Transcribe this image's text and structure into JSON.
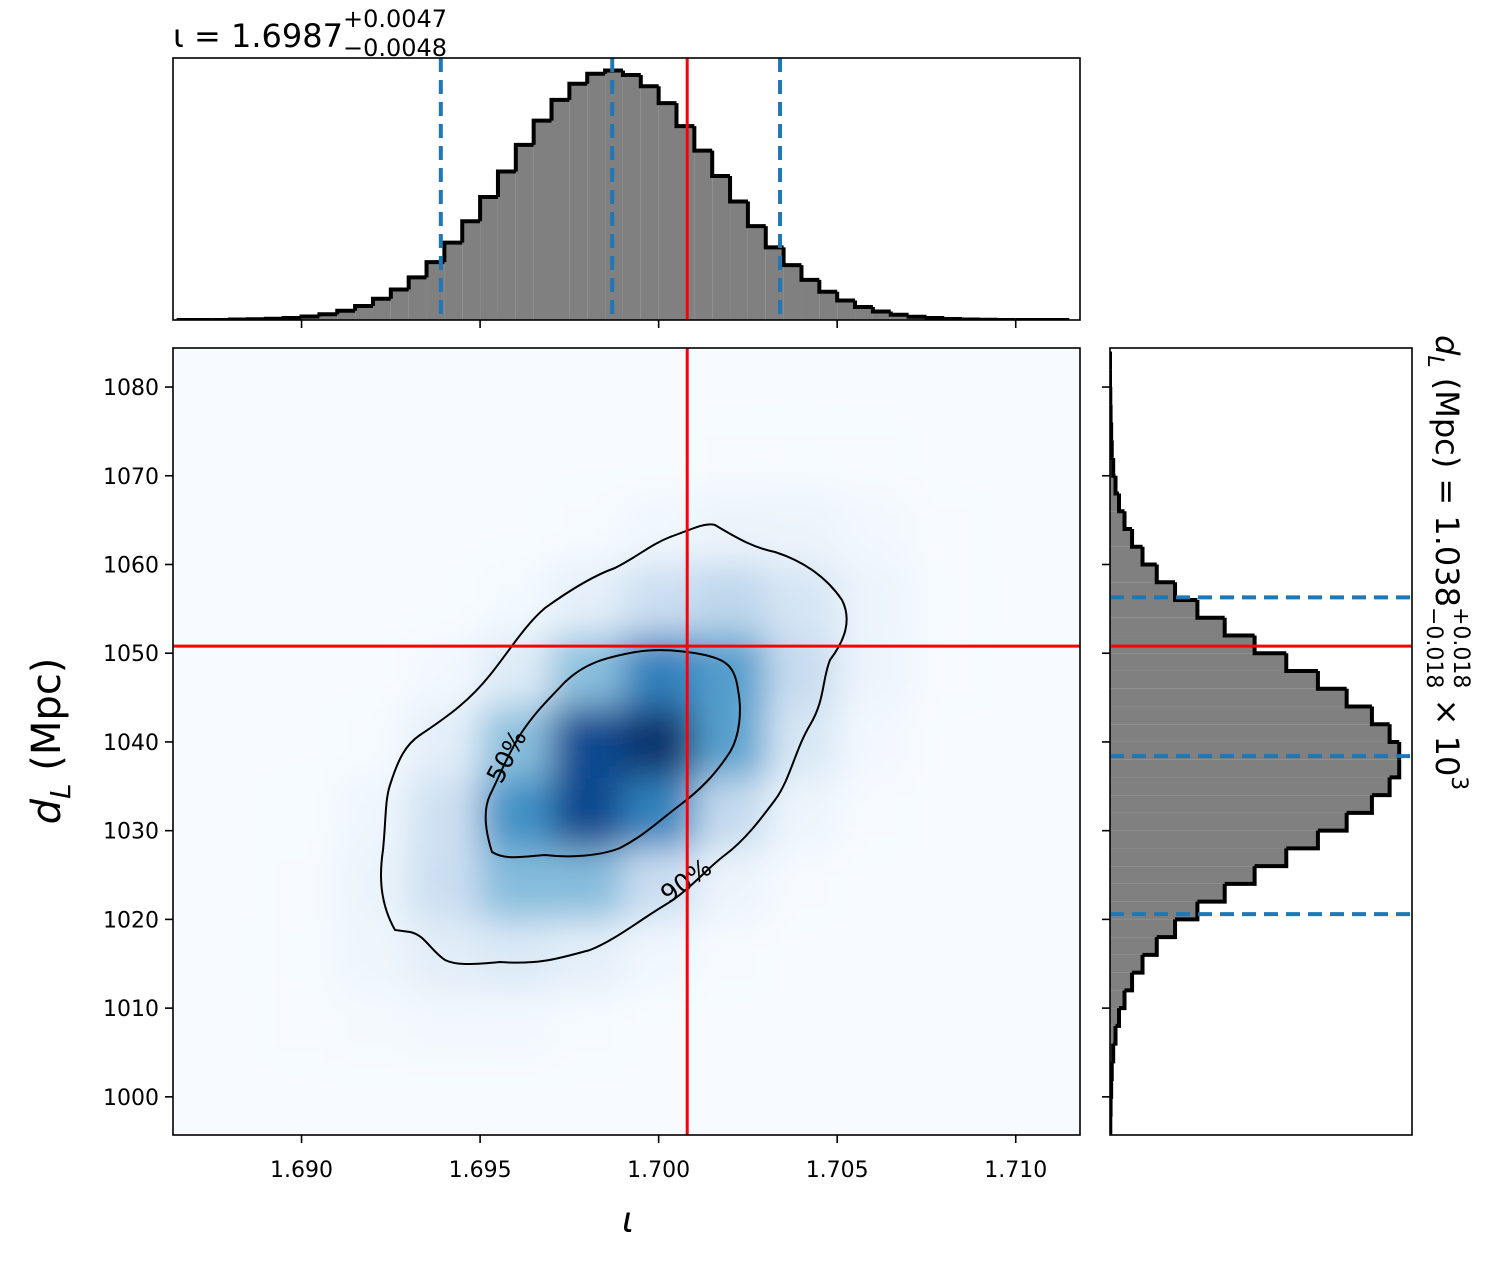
{
  "chart_data": [
    {
      "type": "histogram",
      "orientation": "vertical",
      "title": {
        "main": "ι = 1.6987",
        "upper": "+0.0047",
        "lower": "−0.0048"
      },
      "bins": [
        1.6865,
        1.687,
        1.6875,
        1.688,
        1.6885,
        1.689,
        1.6895,
        1.69,
        1.6905,
        1.691,
        1.6915,
        1.692,
        1.6925,
        1.693,
        1.6935,
        1.694,
        1.6945,
        1.695,
        1.6955,
        1.696,
        1.6965,
        1.697,
        1.6975,
        1.698,
        1.6985,
        1.699,
        1.6995,
        1.7,
        1.7005,
        1.701,
        1.7015,
        1.702,
        1.7025,
        1.703,
        1.7035,
        1.704,
        1.7045,
        1.705,
        1.7055,
        1.706,
        1.7065,
        1.707,
        1.7075,
        1.708,
        1.7085,
        1.709,
        1.7095,
        1.71,
        1.7105,
        1.711,
        1.7115
      ],
      "counts": [
        0,
        0,
        0,
        0.002,
        0.003,
        0.005,
        0.008,
        0.014,
        0.023,
        0.037,
        0.056,
        0.085,
        0.122,
        0.171,
        0.232,
        0.31,
        0.396,
        0.493,
        0.595,
        0.702,
        0.799,
        0.882,
        0.947,
        0.987,
        1,
        0.982,
        0.937,
        0.869,
        0.777,
        0.679,
        0.577,
        0.475,
        0.376,
        0.291,
        0.22,
        0.161,
        0.113,
        0.078,
        0.052,
        0.034,
        0.021,
        0.013,
        0.008,
        0.004,
        0.002,
        0.001,
        0,
        0,
        0,
        0
      ],
      "xlim": [
        1.6864,
        1.7118
      ],
      "ylim": [
        0,
        1.05
      ],
      "xticks": [
        1.69,
        1.695,
        1.7,
        1.705,
        1.71
      ],
      "color": "#808080",
      "edgecolor": "#000000",
      "quantiles": [
        1.6939,
        1.6987,
        1.7034
      ],
      "quantile_color": "#1f77b4",
      "truth": 1.7008,
      "truth_color": "#ff0000"
    },
    {
      "type": "heatmap",
      "cmap": "Blues",
      "x": [
        1.688,
        1.69,
        1.692,
        1.694,
        1.696,
        1.698,
        1.7,
        1.702,
        1.704,
        1.706,
        1.708,
        1.71
      ],
      "y": [
        1000,
        1008,
        1016,
        1024,
        1032,
        1040,
        1048,
        1056,
        1064,
        1072,
        1080
      ],
      "z": [
        [
          0,
          0,
          0,
          0,
          0,
          0,
          0,
          0,
          0,
          0,
          0,
          0
        ],
        [
          0,
          0.004,
          0.013,
          0.023,
          0.021,
          0.009,
          0.002,
          0,
          0,
          0,
          0,
          0
        ],
        [
          0.001,
          0.008,
          0.04,
          0.1,
          0.135,
          0.089,
          0.031,
          0.005,
          0,
          0,
          0,
          0
        ],
        [
          0,
          0.007,
          0.055,
          0.21,
          0.41,
          0.41,
          0.21,
          0.052,
          0.007,
          0,
          0,
          0
        ],
        [
          0,
          0.003,
          0.036,
          0.2,
          0.59,
          0.86,
          0.64,
          0.24,
          0.046,
          0.004,
          0,
          0
        ],
        [
          0,
          0.001,
          0.011,
          0.092,
          0.4,
          0.85,
          0.94,
          0.53,
          0.15,
          0.021,
          0.002,
          0
        ],
        [
          0,
          0,
          0.002,
          0.019,
          0.12,
          0.4,
          0.65,
          0.54,
          0.23,
          0.048,
          0.005,
          0
        ],
        [
          0,
          0,
          0,
          0.002,
          0.018,
          0.086,
          0.21,
          0.26,
          0.16,
          0.051,
          0.008,
          0.001
        ],
        [
          0,
          0,
          0,
          0,
          0.001,
          0.009,
          0.032,
          0.058,
          0.054,
          0.025,
          0.006,
          0
        ],
        [
          0,
          0,
          0,
          0,
          0,
          0,
          0.002,
          0.006,
          0.008,
          0.006,
          0.002,
          0
        ],
        [
          0,
          0,
          0,
          0,
          0,
          0,
          0,
          0,
          0,
          0,
          0,
          0
        ]
      ],
      "xlim": [
        1.6864,
        1.7118
      ],
      "ylim": [
        995.7,
        1084.4
      ],
      "xticks": [
        {
          "value": 1.69,
          "label": "1.690"
        },
        1.695,
        {
          "value": 1.7,
          "label": "1.700"
        },
        1.705,
        {
          "value": 1.71,
          "label": "1.710"
        }
      ],
      "yticks": [
        1000,
        1010,
        1020,
        1030,
        1040,
        1050,
        1060,
        1070,
        1080
      ],
      "xlabel": "ι",
      "ylabel": {
        "symbol": "d",
        "subscript": "L",
        "unit": " (Mpc)"
      },
      "contour_labels": [
        "50%",
        "90%"
      ],
      "truth_x": 1.7008,
      "truth_y": 1050.8,
      "truth_color": "#ff0000"
    },
    {
      "type": "histogram",
      "orientation": "horizontal",
      "title": {
        "symbol": "d",
        "subscript": "L",
        "unit": " (Mpc) = 1.038",
        "upper": "+0.018",
        "lower": "−0.018",
        "times": " × 10",
        "exponent": "3"
      },
      "bins": [
        996,
        998,
        1000,
        1002,
        1004,
        1006,
        1008,
        1010,
        1012,
        1014,
        1016,
        1018,
        1020,
        1022,
        1024,
        1026,
        1028,
        1030,
        1032,
        1034,
        1036,
        1038,
        1040,
        1042,
        1044,
        1046,
        1048,
        1050,
        1052,
        1054,
        1056,
        1058,
        1060,
        1062,
        1064,
        1066,
        1068,
        1070,
        1072,
        1074,
        1076,
        1078,
        1080,
        1082,
        1084
      ],
      "counts": [
        0.001,
        0.002,
        0.004,
        0.006,
        0.011,
        0.019,
        0.031,
        0.05,
        0.076,
        0.112,
        0.161,
        0.224,
        0.301,
        0.395,
        0.498,
        0.607,
        0.716,
        0.815,
        0.902,
        0.963,
        0.996,
        0.996,
        0.963,
        0.902,
        0.815,
        0.716,
        0.607,
        0.498,
        0.395,
        0.301,
        0.224,
        0.161,
        0.112,
        0.076,
        0.05,
        0.031,
        0.019,
        0.011,
        0.006,
        0.004,
        0.002,
        0.001,
        0,
        0
      ],
      "ylim": [
        995.7,
        1084.4
      ],
      "xlim": [
        0,
        1.04
      ],
      "yticks": [
        1000,
        1010,
        1020,
        1030,
        1040,
        1050,
        1060,
        1070,
        1080
      ],
      "color": "#808080",
      "edgecolor": "#000000",
      "quantiles": [
        1020.6,
        1038.4,
        1056.3
      ],
      "quantile_color": "#1f77b4",
      "truth": 1050.8,
      "truth_color": "#ff0000"
    }
  ]
}
